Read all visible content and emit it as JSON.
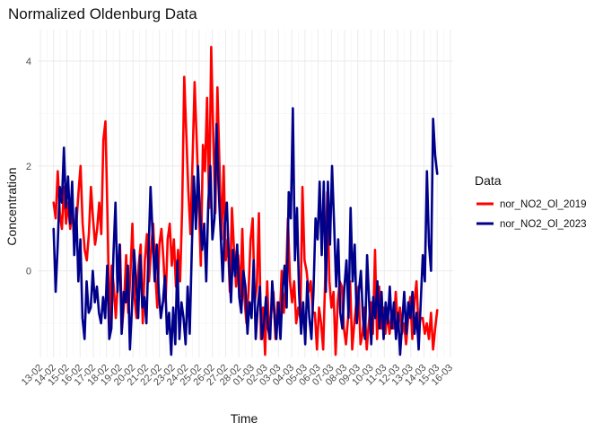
{
  "chart_data": {
    "type": "line",
    "title": "Normalized Oldenburg Data",
    "xlabel": "Time",
    "ylabel": "Concentration",
    "x_ticks": [
      "13-02",
      "14-02",
      "15-02",
      "16-02",
      "17-02",
      "18-02",
      "19-02",
      "20-02",
      "21-02",
      "22-02",
      "23-02",
      "24-02",
      "25-02",
      "26-02",
      "27-02",
      "28-02",
      "01-03",
      "02-03",
      "03-03",
      "04-03",
      "05-03",
      "06-03",
      "07-03",
      "08-03",
      "09-03",
      "10-03",
      "11-03",
      "12-03",
      "13-03",
      "14-03",
      "15-03",
      "16-03"
    ],
    "y_ticks": [
      0,
      2,
      4
    ],
    "ylim": [
      -1.65,
      4.6
    ],
    "grid": true,
    "legend": {
      "title": "Data",
      "position": "right"
    },
    "series": [
      {
        "name": "nor_NO2_Ol_2019",
        "color": "#ff0000",
        "sampling": "4 points per day starting 14-02 to 15-03",
        "values": [
          1.3,
          1.0,
          1.9,
          1.1,
          0.8,
          1.6,
          0.9,
          1.3,
          0.8,
          1.2,
          0.5,
          0.9,
          1.5,
          2.0,
          0.9,
          0.4,
          0.2,
          0.7,
          1.6,
          1.0,
          0.5,
          0.8,
          1.3,
          0.7,
          2.5,
          2.85,
          1.0,
          -1.1,
          0.1,
          -0.3,
          -0.9,
          -0.2,
          0.5,
          -1.1,
          -0.6,
          0.3,
          -0.8,
          -0.1,
          0.9,
          -0.5,
          -0.9,
          0.1,
          0.5,
          -1.0,
          0.2,
          0.7,
          -0.2,
          0.4,
          0.9,
          0.0,
          -0.7,
          0.5,
          0.8,
          0.2,
          -0.6,
          0.6,
          0.9,
          0.1,
          0.6,
          -0.3,
          0.4,
          -0.2,
          1.2,
          3.7,
          2.6,
          1.5,
          0.7,
          2.1,
          3.6,
          2.5,
          1.3,
          0.1,
          2.4,
          1.9,
          3.3,
          1.2,
          4.27,
          2.6,
          1.1,
          3.5,
          2.0,
          0.6,
          2.0,
          0.2,
          0.6,
          -0.4,
          1.2,
          0.4,
          -0.3,
          0.3,
          -0.5,
          0.8,
          -0.5,
          -1.0,
          -0.4,
          0.6,
          1.0,
          -0.6,
          -0.3,
          1.1,
          -1.3,
          -0.7,
          -1.6,
          -0.2,
          -1.3,
          -0.8,
          -0.4,
          -1.3,
          -0.6,
          -1.0,
          0.0,
          -0.8,
          -0.3,
          1.0,
          -0.2,
          -0.6,
          -0.2,
          -1.0,
          -0.7,
          -0.9,
          1.6,
          0.2,
          0.0,
          -0.4,
          -0.2,
          -0.8,
          -0.8,
          -1.5,
          -0.7,
          -1.0,
          -1.5,
          -0.1,
          1.5,
          -0.2,
          -0.7,
          -0.4,
          -1.6,
          -0.6,
          -0.2,
          -0.3,
          -1.1,
          -1.4,
          -0.9,
          -0.2,
          -1.5,
          -1.0,
          -0.6,
          -0.3,
          -1.4,
          -1.2,
          -0.7,
          -1.5,
          -1.0,
          -0.6,
          -1.2,
          0.4,
          -1.3,
          -0.3,
          -1.1,
          -0.7,
          -1.2,
          -0.8,
          -1.2,
          -0.8,
          -1.1,
          -0.4,
          -1.1,
          -0.7,
          -1.2,
          -1.0,
          -1.4,
          -0.9,
          -0.5,
          -1.3,
          -0.6,
          -0.2,
          -1.1,
          -0.9,
          -0.9,
          -1.2,
          -1.0,
          -1.3,
          -0.8,
          -1.5,
          -1.1,
          -0.75
        ]
      },
      {
        "name": "nor_NO2_Ol_2023",
        "color": "#00008b",
        "sampling": "4 points per day starting 14-02 to 15-03",
        "values": [
          0.8,
          -0.4,
          0.5,
          1.6,
          1.3,
          2.35,
          1.2,
          1.8,
          0.9,
          1.7,
          0.3,
          1.2,
          -0.2,
          0.6,
          -0.9,
          -1.3,
          -0.2,
          -0.8,
          -0.7,
          0.0,
          -0.6,
          -0.3,
          -0.8,
          -1.0,
          -0.5,
          -0.9,
          0.1,
          -1.3,
          -1.1,
          0.3,
          1.3,
          -0.4,
          0.5,
          -1.2,
          -0.4,
          -0.6,
          0.1,
          -1.5,
          -0.7,
          0.4,
          -0.2,
          -0.9,
          0.3,
          -0.7,
          -0.5,
          -1.0,
          0.3,
          1.6,
          0.7,
          -0.2,
          0.5,
          -0.4,
          -0.9,
          -0.6,
          -0.1,
          -1.2,
          -0.8,
          -1.6,
          -0.7,
          -1.4,
          0.2,
          -1.3,
          -0.6,
          -0.9,
          -1.4,
          -0.3,
          -1.2,
          0.4,
          1.8,
          0.8,
          2.0,
          1.1,
          0.4,
          0.9,
          -0.2,
          1.3,
          2.0,
          0.6,
          1.0,
          2.8,
          1.6,
          0.7,
          -0.2,
          0.9,
          1.3,
          0.2,
          -0.6,
          0.4,
          -0.1,
          0.5,
          -0.5,
          -0.8,
          0.0,
          -0.3,
          -1.2,
          -0.6,
          -0.9,
          0.2,
          -1.3,
          -0.7,
          -0.3,
          -1.3,
          -1.0,
          -0.5,
          -1.1,
          -1.3,
          -0.2,
          -0.8,
          -1.3,
          -0.6,
          -1.3,
          -0.4,
          0.1,
          -0.7,
          1.5,
          1.0,
          3.1,
          0.2,
          1.2,
          -0.4,
          -1.2,
          -0.6,
          -1.4,
          -0.2,
          -0.9,
          -1.3,
          -0.4,
          1.0,
          0.6,
          1.7,
          0.3,
          1.7,
          -0.4,
          1.7,
          0.5,
          2.0,
          0.9,
          -0.3,
          0.6,
          -0.8,
          -1.1,
          -0.3,
          0.2,
          -0.9,
          1.2,
          -0.2,
          0.5,
          -1.0,
          -0.4,
          0.0,
          -0.9,
          -1.3,
          0.3,
          -0.6,
          -1.4,
          -0.5,
          -0.9,
          -0.2,
          -1.1,
          -0.4,
          -1.3,
          -0.6,
          -1.0,
          -0.3,
          -1.1,
          -0.6,
          -1.3,
          -0.8,
          -1.6,
          -1.0,
          -0.4,
          -1.2,
          -0.6,
          -0.9,
          -0.4,
          -1.2,
          -0.8,
          -1.5,
          -0.6,
          0.3,
          -0.2,
          1.9,
          0.5,
          0.0,
          2.9,
          2.2,
          1.85
        ]
      }
    ]
  }
}
